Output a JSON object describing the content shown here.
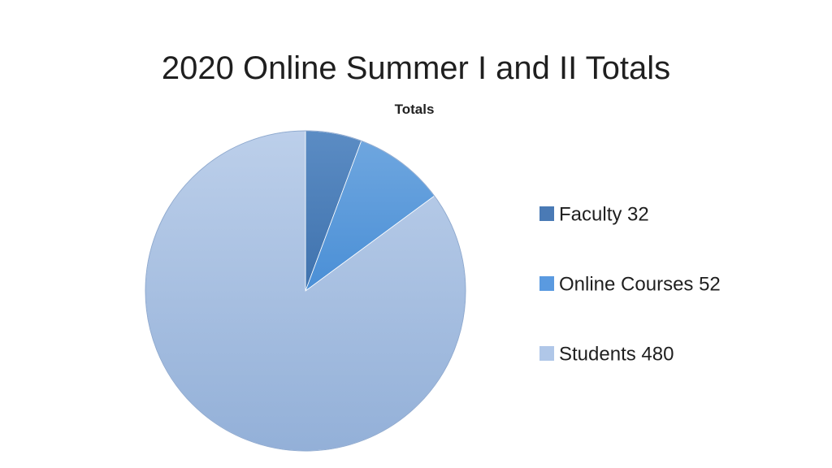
{
  "slide": {
    "title": "2020 Online Summer I and II Totals"
  },
  "chart_data": {
    "type": "pie",
    "title": "Totals",
    "categories": [
      "Faculty",
      "Online Courses",
      "Students"
    ],
    "values": [
      32,
      52,
      480
    ],
    "legend_labels": [
      "Faculty 32",
      "Online Courses 52",
      "Students 480"
    ],
    "colors": [
      "#4f81bd",
      "#5b9bd5",
      "#a9c4e8"
    ],
    "legend_position": "right",
    "start_angle": "12-o-clock",
    "direction": "clockwise"
  }
}
